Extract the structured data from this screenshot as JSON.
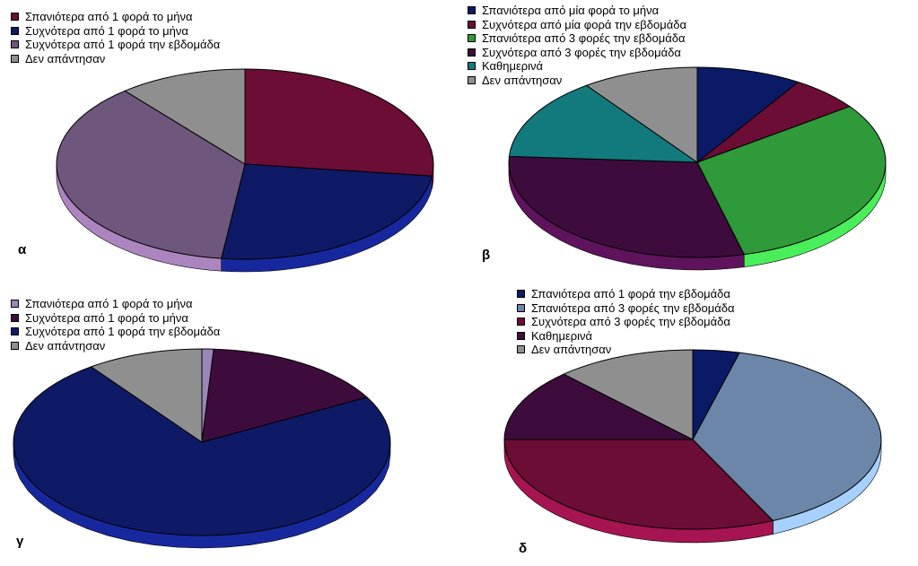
{
  "chart_data": [
    {
      "type": "pie",
      "panel_label": "α",
      "legend": [
        {
          "label": "Σπανιότερα από 1 φορά το μήνα",
          "color": "#6b0d35"
        },
        {
          "label": "Συχνότερα από 1 φορά το μήνα",
          "color": "#0f1a66"
        },
        {
          "label": "Συχνότερα από 1 φορά την εβδομάδα",
          "color": "#6f567c"
        },
        {
          "label": "Δεν απάντησαν",
          "color": "#8f8f8f"
        }
      ],
      "values": [
        27,
        25,
        37,
        11
      ]
    },
    {
      "type": "pie",
      "panel_label": "β",
      "legend": [
        {
          "label": "Σπανιότερα από μία φορά το μήνα",
          "color": "#0b1a66"
        },
        {
          "label": "Συχνότερα από μία φορά την εβδομάδα",
          "color": "#6b0d35"
        },
        {
          "label": "Σπανιότερα από 3 φορές την εβδομάδα",
          "color": "#2f9a3a"
        },
        {
          "label": "Συχνότερα από 3 φορές την εβδομάδα",
          "color": "#3d0c3c"
        },
        {
          "label": "Καθημερινά",
          "color": "#127a7c"
        },
        {
          "label": "Δεν απάντησαν",
          "color": "#8f8f8f"
        }
      ],
      "values": [
        9,
        6,
        31,
        30,
        14,
        10
      ]
    },
    {
      "type": "pie",
      "panel_label": "γ",
      "legend": [
        {
          "label": "Σπανιότερα από 1 φορά το μήνα",
          "color": "#9a86b8"
        },
        {
          "label": "Συχνότερα από 1 φορά το μήνα",
          "color": "#3d0c3c"
        },
        {
          "label": "Συχνότερα από 1 φορά την εβδομάδα",
          "color": "#0f1a66"
        },
        {
          "label": "Δεν απάντησαν",
          "color": "#8f8f8f"
        }
      ],
      "values": [
        1,
        16,
        73,
        10
      ]
    },
    {
      "type": "pie",
      "panel_label": "δ",
      "legend": [
        {
          "label": "Σπανιότερα από 1 φορά την εβδομάδα",
          "color": "#0b1a66"
        },
        {
          "label": "Σπανιότερα από 3 φορές την εβδομάδα",
          "color": "#6b86a8"
        },
        {
          "label": "Συχνότερα από 3 φορές την εβδομάδα",
          "color": "#6b0d35"
        },
        {
          "label": "Καθημερινά",
          "color": "#3d0c3c"
        },
        {
          "label": "Δεν απάντησαν",
          "color": "#8f8f8f"
        }
      ],
      "values": [
        4,
        39,
        32,
        13,
        12
      ]
    }
  ]
}
